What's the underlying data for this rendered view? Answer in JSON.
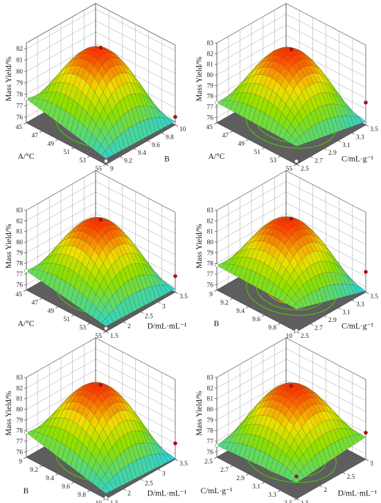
{
  "figure": {
    "colors": {
      "surface_low": "#22d0f0",
      "surface_mid": "#8ee000",
      "surface_high": "#ff3000",
      "floor": "#5e5e5e",
      "contour_inner": "#f0a800",
      "contour_outer": "#4cc800",
      "design_point_high": "#c00000",
      "design_point_low": "#ffffff"
    },
    "grid": "on",
    "box": "on"
  },
  "chart_data": [
    {
      "type": "surface",
      "zlabel": "Mass Yield/%",
      "zticks": [
        "76",
        "77",
        "78",
        "79",
        "80",
        "81",
        "82"
      ],
      "zlim": [
        75.5,
        82.5
      ],
      "x": {
        "label": "A/°C",
        "ticks": [
          "45",
          "47",
          "49",
          "51",
          "53",
          "55"
        ],
        "range": [
          45,
          55
        ]
      },
      "y": {
        "label": "B",
        "ticks": [
          "9",
          "9.2",
          "9.4",
          "9.6",
          "9.8",
          "10"
        ],
        "range": [
          9,
          10
        ]
      },
      "peak": 82.0,
      "corners": [
        77.6,
        76.0,
        75.8,
        76.2
      ],
      "points": [
        82.0,
        77.6,
        75.8,
        76.2
      ]
    },
    {
      "type": "surface",
      "zlabel": "Mass Yield/%",
      "zticks": [
        "76",
        "77",
        "78",
        "79",
        "80",
        "81",
        "82",
        "83"
      ],
      "zlim": [
        75.5,
        83
      ],
      "x": {
        "label": "A/°C",
        "ticks": [
          "45",
          "47",
          "49",
          "51",
          "53",
          "55"
        ],
        "range": [
          45,
          55
        ]
      },
      "y": {
        "label": "C/mL·g⁻¹",
        "ticks": [
          "2.5",
          "2.7",
          "2.9",
          "3.1",
          "3.3",
          "3.5"
        ],
        "range": [
          2.5,
          3.5
        ]
      },
      "peak": 82.3,
      "corners": [
        77.4,
        77.2,
        75.8,
        77.6
      ],
      "points": [
        82.3,
        77.4,
        75.8,
        77.6
      ]
    },
    {
      "type": "surface",
      "zlabel": "Mass Yield/%",
      "zticks": [
        "76",
        "77",
        "78",
        "79",
        "80",
        "81",
        "82",
        "83"
      ],
      "zlim": [
        75.5,
        83
      ],
      "x": {
        "label": "A/°C",
        "ticks": [
          "45",
          "47",
          "49",
          "51",
          "53",
          "55"
        ],
        "range": [
          45,
          55
        ]
      },
      "y": {
        "label": "D/mL·mL⁻¹",
        "ticks": [
          "1.5",
          "2",
          "2.5",
          "3",
          "3.5"
        ],
        "range": [
          1.5,
          3.5
        ]
      },
      "peak": 82.0,
      "corners": [
        77.3,
        76.0,
        75.8,
        77.0
      ],
      "points": [
        82.0,
        77.3,
        75.8,
        77.0
      ]
    },
    {
      "type": "surface",
      "zlabel": "Mass Yield/%",
      "zticks": [
        "76",
        "77",
        "78",
        "79",
        "80",
        "81",
        "82",
        "83"
      ],
      "zlim": [
        75.5,
        83
      ],
      "x": {
        "label": "B",
        "ticks": [
          "9",
          "9.2",
          "9.4",
          "9.6",
          "9.8",
          "10"
        ],
        "range": [
          9,
          10
        ]
      },
      "y": {
        "label": "C/mL·g⁻¹",
        "ticks": [
          "2.5",
          "2.7",
          "2.9",
          "3.1",
          "3.3",
          "3.5"
        ],
        "range": [
          2.5,
          3.5
        ]
      },
      "peak": 82.1,
      "corners": [
        77.8,
        77.6,
        75.6,
        77.4
      ],
      "points": [
        82.1,
        77.8,
        75.6,
        77.4
      ]
    },
    {
      "type": "surface",
      "zlabel": "Mass Yield/%",
      "zticks": [
        "76",
        "77",
        "78",
        "79",
        "80",
        "81",
        "82",
        "83"
      ],
      "zlim": [
        75.5,
        83
      ],
      "x": {
        "label": "B",
        "ticks": [
          "9",
          "9.2",
          "9.4",
          "9.6",
          "9.8",
          "10"
        ],
        "range": [
          9,
          10
        ]
      },
      "y": {
        "label": "D/mL·mL⁻¹",
        "ticks": [
          "1.5",
          "2",
          "2.5",
          "3",
          "3.5"
        ],
        "range": [
          1.5,
          3.5
        ]
      },
      "peak": 82.2,
      "corners": [
        77.8,
        76.0,
        75.6,
        77.0
      ],
      "points": [
        82.2,
        77.8,
        75.6,
        77.0
      ]
    },
    {
      "type": "surface",
      "zlabel": "Mass Yield/%",
      "zticks": [
        "76",
        "77",
        "78",
        "79",
        "80",
        "81",
        "82",
        "83"
      ],
      "zlim": [
        75.5,
        83
      ],
      "x": {
        "label": "C/mL·g⁻¹",
        "ticks": [
          "2.5",
          "2.7",
          "2.9",
          "3.1",
          "3.3",
          "3.5"
        ],
        "range": [
          2.5,
          3.5
        ]
      },
      "y": {
        "label": "D/mL·mL⁻¹",
        "ticks": [
          "1.5",
          "2",
          "2.5",
          "3"
        ],
        "range": [
          1.5,
          3
        ]
      },
      "peak": 82.1,
      "corners": [
        76.6,
        77.0,
        77.6,
        78.0
      ],
      "points": [
        82.1,
        76.6,
        77.6,
        78.0
      ]
    }
  ]
}
